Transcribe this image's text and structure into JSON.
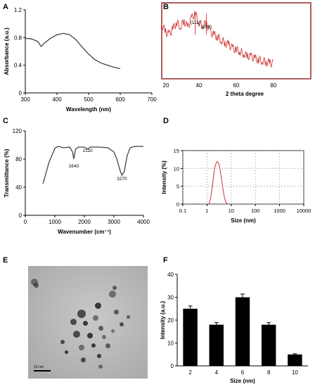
{
  "panels": {
    "A": "A",
    "B": "B",
    "C": "C",
    "D": "D",
    "E": "E",
    "F": "F"
  },
  "scale_bar_label": "10 nm",
  "chart_data": [
    {
      "panel": "A",
      "type": "line",
      "xlabel": "Wavelength (nm)",
      "ylabel": "Absorbance (a.u.)",
      "xlim": [
        300,
        700
      ],
      "ylim": [
        0,
        1.2
      ],
      "xticks": [
        300,
        400,
        500,
        600,
        700
      ],
      "yticks": [
        0,
        0.4,
        0.8,
        1.2
      ],
      "ytick_labels": [
        "0",
        "0.4",
        "0.8",
        "1.2"
      ],
      "grid": false,
      "series": [
        {
          "x": [
            300,
            320,
            340,
            350,
            360,
            380,
            400,
            420,
            440,
            460,
            480,
            500,
            520,
            540,
            560,
            580,
            600
          ],
          "y": [
            0.79,
            0.78,
            0.74,
            0.67,
            0.72,
            0.79,
            0.84,
            0.86,
            0.84,
            0.77,
            0.66,
            0.56,
            0.48,
            0.43,
            0.4,
            0.37,
            0.35
          ]
        }
      ]
    },
    {
      "panel": "B",
      "type": "line",
      "xlabel": "2 theta degree",
      "ylabel": "Intensity (a.u.)",
      "xlim": [
        20,
        100
      ],
      "xticks": [
        20,
        40,
        60,
        80
      ],
      "ylim": [
        0,
        1
      ],
      "yticks_shown": false,
      "grid": false,
      "annotations": [
        {
          "label": "(111)",
          "x": 38
        },
        {
          "label": "(200)",
          "x": 44
        },
        {
          "label": "(311)",
          "x": 77
        }
      ],
      "series": [
        {
          "x": [
            20,
            22,
            24,
            26,
            28,
            30,
            32,
            34,
            36,
            38,
            40,
            42,
            44,
            46,
            48,
            50,
            52,
            54,
            56,
            58,
            60,
            62,
            64,
            66,
            68,
            70,
            72,
            74,
            76,
            78,
            80
          ],
          "y": [
            0.72,
            0.62,
            0.58,
            0.66,
            0.74,
            0.69,
            0.76,
            0.68,
            0.8,
            0.86,
            0.74,
            0.7,
            0.73,
            0.62,
            0.58,
            0.55,
            0.51,
            0.47,
            0.45,
            0.4,
            0.38,
            0.36,
            0.33,
            0.3,
            0.29,
            0.27,
            0.25,
            0.24,
            0.22,
            0.21,
            0.2
          ]
        }
      ]
    },
    {
      "panel": "C",
      "type": "line",
      "xlabel": "Wavenumber (cm⁻¹)",
      "ylabel": "Transmittance (%)",
      "xlim": [
        0,
        4000
      ],
      "ylim": [
        0,
        120
      ],
      "xticks": [
        0,
        1000,
        2000,
        3000,
        4000
      ],
      "yticks": [
        0,
        40,
        80,
        120
      ],
      "grid": false,
      "annotations": [
        {
          "label": "1640",
          "x": 1640
        },
        {
          "label": "2110",
          "x": 2110
        },
        {
          "label": "3270",
          "x": 3270
        }
      ],
      "series": [
        {
          "x": [
            600,
            800,
            1000,
            1100,
            1300,
            1500,
            1600,
            1640,
            1700,
            1800,
            2000,
            2110,
            2200,
            2500,
            2800,
            3000,
            3100,
            3200,
            3270,
            3350,
            3450,
            3550,
            3700,
            4000
          ],
          "y": [
            45,
            75,
            95,
            98,
            96,
            97,
            90,
            80,
            94,
            97,
            97,
            94,
            97,
            97,
            96,
            90,
            80,
            65,
            57,
            62,
            85,
            96,
            98,
            98
          ]
        }
      ]
    },
    {
      "panel": "D",
      "type": "line",
      "xlabel": "Size (nm)",
      "ylabel": "Intensity (%)",
      "xscale": "log",
      "xlim": [
        0.1,
        10000
      ],
      "ylim": [
        0,
        15
      ],
      "xticks": [
        0.1,
        1,
        10,
        100,
        1000,
        10000
      ],
      "xtick_labels": [
        "0.1",
        "1",
        "10",
        "100",
        "1000",
        "10000"
      ],
      "yticks": [
        0,
        5,
        10,
        15
      ],
      "grid": true,
      "series": [
        {
          "x": [
            1.2,
            1.4,
            1.6,
            1.8,
            2.0,
            2.3,
            2.6,
            3.0,
            3.4,
            3.9,
            4.5,
            5.2,
            6.0,
            7.0
          ],
          "y": [
            0,
            1.5,
            4.0,
            7.0,
            9.5,
            11.2,
            11.9,
            11.6,
            10.0,
            7.5,
            4.5,
            2.0,
            0.5,
            0
          ]
        }
      ]
    },
    {
      "panel": "F",
      "type": "bar",
      "xlabel": "Size (nm)",
      "ylabel": "Intensity (a.u.)",
      "categories": [
        "2",
        "4",
        "6",
        "8",
        "10"
      ],
      "values": [
        25,
        18,
        30,
        18,
        5
      ],
      "errors": [
        1.2,
        0.9,
        1.4,
        0.9,
        0.3
      ],
      "ylim": [
        0,
        40
      ],
      "yticks": [
        0,
        10,
        20,
        30,
        40
      ],
      "grid": false
    }
  ]
}
